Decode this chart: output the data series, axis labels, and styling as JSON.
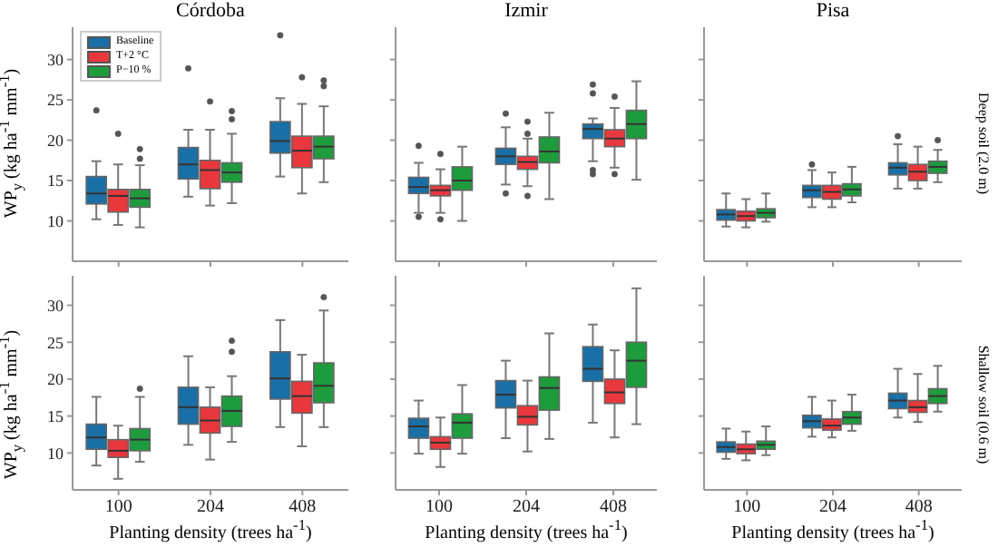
{
  "chart_data": [
    {
      "type": "box",
      "title": "Córdoba",
      "ylabel": "WP$_{y}$ (kg ha$^{-1}$ mm$^{-1}$)",
      "categories": [
        "100",
        "204",
        "408"
      ],
      "ylim": [
        5,
        34
      ],
      "yticks": [
        10,
        15,
        20,
        25,
        30
      ],
      "legend": "top left",
      "tick_labels": "y",
      "series": [
        {
          "name": "Baseline",
          "color": "#1a6fa6",
          "boxes": [
            {
              "low": 10.2,
              "q1": 12.1,
              "median": 13.4,
              "q3": 15.5,
              "high": 17.4,
              "outliers": [
                23.7
              ]
            },
            {
              "low": 13.0,
              "q1": 15.2,
              "median": 17.0,
              "q3": 19.1,
              "high": 21.3,
              "outliers": [
                28.9
              ]
            },
            {
              "low": 15.5,
              "q1": 18.4,
              "median": 19.9,
              "q3": 22.3,
              "high": 25.2,
              "outliers": [
                33.0
              ]
            }
          ]
        },
        {
          "name": "T+2 °C",
          "color": "#e8383d",
          "boxes": [
            {
              "low": 9.5,
              "q1": 11.1,
              "median": 13.1,
              "q3": 13.9,
              "high": 17.0,
              "outliers": [
                20.8
              ]
            },
            {
              "low": 11.9,
              "q1": 14.0,
              "median": 16.3,
              "q3": 17.5,
              "high": 21.3,
              "outliers": [
                24.8
              ]
            },
            {
              "low": 13.4,
              "q1": 16.6,
              "median": 18.7,
              "q3": 20.5,
              "high": 24.5,
              "outliers": [
                27.8
              ]
            }
          ]
        },
        {
          "name": "P−10 %",
          "color": "#1e9b3c",
          "boxes": [
            {
              "low": 9.2,
              "q1": 11.7,
              "median": 12.8,
              "q3": 13.9,
              "high": 16.9,
              "outliers": [
                18.9,
                17.7
              ]
            },
            {
              "low": 12.2,
              "q1": 14.8,
              "median": 16.0,
              "q3": 17.2,
              "high": 20.8,
              "outliers": [
                23.6,
                22.6
              ]
            },
            {
              "low": 14.8,
              "q1": 17.7,
              "median": 19.2,
              "q3": 20.5,
              "high": 24.2,
              "outliers": [
                27.4,
                26.7
              ]
            }
          ]
        }
      ]
    },
    {
      "type": "box",
      "title": "Izmir",
      "categories": [
        "100",
        "204",
        "408"
      ],
      "ylim": [
        5,
        34
      ],
      "yticks": [
        10,
        15,
        20,
        25,
        30
      ],
      "tick_labels": false,
      "series": [
        {
          "color": "#1a6fa6",
          "boxes": [
            {
              "low": 11.0,
              "q1": 13.4,
              "median": 14.2,
              "q3": 15.4,
              "high": 17.2,
              "outliers": [
                19.3,
                10.5
              ]
            },
            {
              "low": 14.5,
              "q1": 17.0,
              "median": 18.0,
              "q3": 19.0,
              "high": 21.6,
              "outliers": [
                23.3,
                13.4
              ]
            },
            {
              "low": 17.4,
              "q1": 20.2,
              "median": 21.4,
              "q3": 22.0,
              "high": 22.7,
              "outliers": [
                26.9,
                25.8,
                16.3,
                15.8
              ]
            }
          ]
        },
        {
          "color": "#e8383d",
          "boxes": [
            {
              "low": 11.0,
              "q1": 13.1,
              "median": 13.8,
              "q3": 14.4,
              "high": 16.4,
              "outliers": [
                18.3,
                10.2
              ]
            },
            {
              "low": 14.3,
              "q1": 16.4,
              "median": 17.3,
              "q3": 18.0,
              "high": 20.2,
              "outliers": [
                22.3,
                20.8,
                13.1
              ]
            },
            {
              "low": 16.6,
              "q1": 19.2,
              "median": 20.2,
              "q3": 21.3,
              "high": 24.0,
              "outliers": [
                25.4,
                15.8
              ]
            }
          ]
        },
        {
          "color": "#1e9b3c",
          "boxes": [
            {
              "low": 10.0,
              "q1": 13.8,
              "median": 15.0,
              "q3": 16.7,
              "high": 19.2
            },
            {
              "low": 12.7,
              "q1": 17.2,
              "median": 18.6,
              "q3": 20.4,
              "high": 23.4
            },
            {
              "low": 15.1,
              "q1": 20.2,
              "median": 22.0,
              "q3": 23.7,
              "high": 27.3
            }
          ]
        }
      ]
    },
    {
      "type": "box",
      "title": "Pisa",
      "y2label": "Deep soil (2.0 m)",
      "categories": [
        "100",
        "204",
        "408"
      ],
      "ylim": [
        5,
        34
      ],
      "yticks": [
        10,
        15,
        20,
        25,
        30
      ],
      "tick_labels": false,
      "series": [
        {
          "color": "#1a6fa6",
          "boxes": [
            {
              "low": 9.3,
              "q1": 10.1,
              "median": 10.8,
              "q3": 11.4,
              "high": 13.4
            },
            {
              "low": 11.7,
              "q1": 12.9,
              "median": 13.8,
              "q3": 14.4,
              "high": 16.3,
              "outliers": [
                17.0
              ]
            },
            {
              "low": 14.0,
              "q1": 15.7,
              "median": 16.6,
              "q3": 17.2,
              "high": 19.5,
              "outliers": [
                20.5
              ]
            }
          ]
        },
        {
          "color": "#e8383d",
          "boxes": [
            {
              "low": 9.2,
              "q1": 10.0,
              "median": 10.6,
              "q3": 11.2,
              "high": 12.7
            },
            {
              "low": 11.7,
              "q1": 12.7,
              "median": 13.6,
              "q3": 14.4,
              "high": 16.0
            },
            {
              "low": 14.0,
              "q1": 15.0,
              "median": 16.1,
              "q3": 17.0,
              "high": 19.2
            }
          ]
        },
        {
          "color": "#1e9b3c",
          "boxes": [
            {
              "low": 9.9,
              "q1": 10.4,
              "median": 11.0,
              "q3": 11.5,
              "high": 13.4
            },
            {
              "low": 12.3,
              "q1": 13.1,
              "median": 13.9,
              "q3": 14.6,
              "high": 16.7
            },
            {
              "low": 14.8,
              "q1": 15.9,
              "median": 16.7,
              "q3": 17.4,
              "high": 18.8,
              "outliers": [
                20.0
              ]
            }
          ]
        }
      ]
    },
    {
      "type": "box",
      "ylabel": "WP$_{y}$ (kg ha$^{-1}$ mm$^{-1}$)",
      "xlabel": "Planting density (trees ha$^{-1}$)",
      "categories": [
        "100",
        "204",
        "408"
      ],
      "ylim": [
        5,
        34
      ],
      "yticks": [
        10,
        15,
        20,
        25,
        30
      ],
      "series": [
        {
          "color": "#1a6fa6",
          "boxes": [
            {
              "low": 8.3,
              "q1": 10.5,
              "median": 12.1,
              "q3": 13.9,
              "high": 17.6
            },
            {
              "low": 11.1,
              "q1": 13.9,
              "median": 16.2,
              "q3": 18.9,
              "high": 23.1
            },
            {
              "low": 13.5,
              "q1": 17.3,
              "median": 20.1,
              "q3": 23.7,
              "high": 28.0
            }
          ]
        },
        {
          "color": "#e8383d",
          "boxes": [
            {
              "low": 6.5,
              "q1": 9.4,
              "median": 10.3,
              "q3": 11.8,
              "high": 13.7
            },
            {
              "low": 9.1,
              "q1": 12.7,
              "median": 14.4,
              "q3": 16.2,
              "high": 18.9
            },
            {
              "low": 10.9,
              "q1": 15.4,
              "median": 17.7,
              "q3": 19.7,
              "high": 23.3
            }
          ]
        },
        {
          "color": "#1e9b3c",
          "boxes": [
            {
              "low": 8.8,
              "q1": 10.3,
              "median": 11.8,
              "q3": 13.3,
              "high": 17.6,
              "outliers": [
                18.7
              ]
            },
            {
              "low": 11.5,
              "q1": 13.6,
              "median": 15.7,
              "q3": 17.7,
              "high": 20.4,
              "outliers": [
                25.2,
                23.7
              ]
            },
            {
              "low": 13.5,
              "q1": 16.8,
              "median": 19.1,
              "q3": 22.2,
              "high": 29.3,
              "outliers": [
                31.1
              ]
            }
          ]
        }
      ]
    },
    {
      "type": "box",
      "xlabel": "Planting density (trees ha$^{-1}$)",
      "categories": [
        "100",
        "204",
        "408"
      ],
      "ylim": [
        5,
        34
      ],
      "yticks": [
        10,
        15,
        20,
        25,
        30
      ],
      "tick_labels": "x",
      "series": [
        {
          "color": "#1a6fa6",
          "boxes": [
            {
              "low": 9.9,
              "q1": 12.0,
              "median": 13.6,
              "q3": 14.7,
              "high": 17.1
            },
            {
              "low": 12.0,
              "q1": 16.1,
              "median": 17.9,
              "q3": 19.8,
              "high": 22.5
            },
            {
              "low": 14.1,
              "q1": 19.7,
              "median": 21.4,
              "q3": 24.4,
              "high": 27.4
            }
          ]
        },
        {
          "color": "#e8383d",
          "boxes": [
            {
              "low": 8.1,
              "q1": 10.5,
              "median": 11.4,
              "q3": 12.2,
              "high": 14.8
            },
            {
              "low": 10.2,
              "q1": 13.8,
              "median": 14.9,
              "q3": 16.4,
              "high": 19.8
            },
            {
              "low": 12.1,
              "q1": 16.7,
              "median": 18.2,
              "q3": 20.0,
              "high": 23.9
            }
          ]
        },
        {
          "color": "#1e9b3c",
          "boxes": [
            {
              "low": 9.9,
              "q1": 12.0,
              "median": 14.1,
              "q3": 15.3,
              "high": 19.2
            },
            {
              "low": 11.9,
              "q1": 15.8,
              "median": 18.8,
              "q3": 20.3,
              "high": 26.2
            },
            {
              "low": 13.9,
              "q1": 18.9,
              "median": 22.5,
              "q3": 25.0,
              "high": 32.3
            }
          ]
        }
      ]
    },
    {
      "type": "box",
      "xlabel": "Planting density (trees ha$^{-1}$)",
      "y2label": "Shallow soil (0.6 m)",
      "categories": [
        "100",
        "204",
        "408"
      ],
      "ylim": [
        5,
        34
      ],
      "yticks": [
        10,
        15,
        20,
        25,
        30
      ],
      "tick_labels": "x",
      "series": [
        {
          "color": "#1a6fa6",
          "boxes": [
            {
              "low": 9.2,
              "q1": 10.1,
              "median": 10.8,
              "q3": 11.5,
              "high": 13.3
            },
            {
              "low": 12.2,
              "q1": 13.4,
              "median": 14.3,
              "q3": 15.1,
              "high": 17.6
            },
            {
              "low": 14.8,
              "q1": 16.0,
              "median": 17.1,
              "q3": 18.1,
              "high": 21.4
            }
          ]
        },
        {
          "color": "#e8383d",
          "boxes": [
            {
              "low": 9.0,
              "q1": 9.9,
              "median": 10.5,
              "q3": 11.2,
              "high": 12.9
            },
            {
              "low": 12.1,
              "q1": 13.1,
              "median": 13.7,
              "q3": 14.6,
              "high": 17.1
            },
            {
              "low": 14.2,
              "q1": 15.5,
              "median": 16.2,
              "q3": 17.1,
              "high": 20.7
            }
          ]
        },
        {
          "color": "#1e9b3c",
          "boxes": [
            {
              "low": 9.7,
              "q1": 10.5,
              "median": 11.1,
              "q3": 11.6,
              "high": 13.6
            },
            {
              "low": 13.0,
              "q1": 13.9,
              "median": 14.8,
              "q3": 15.6,
              "high": 17.9
            },
            {
              "low": 15.6,
              "q1": 16.7,
              "median": 17.7,
              "q3": 18.7,
              "high": 21.8
            }
          ]
        }
      ]
    }
  ]
}
